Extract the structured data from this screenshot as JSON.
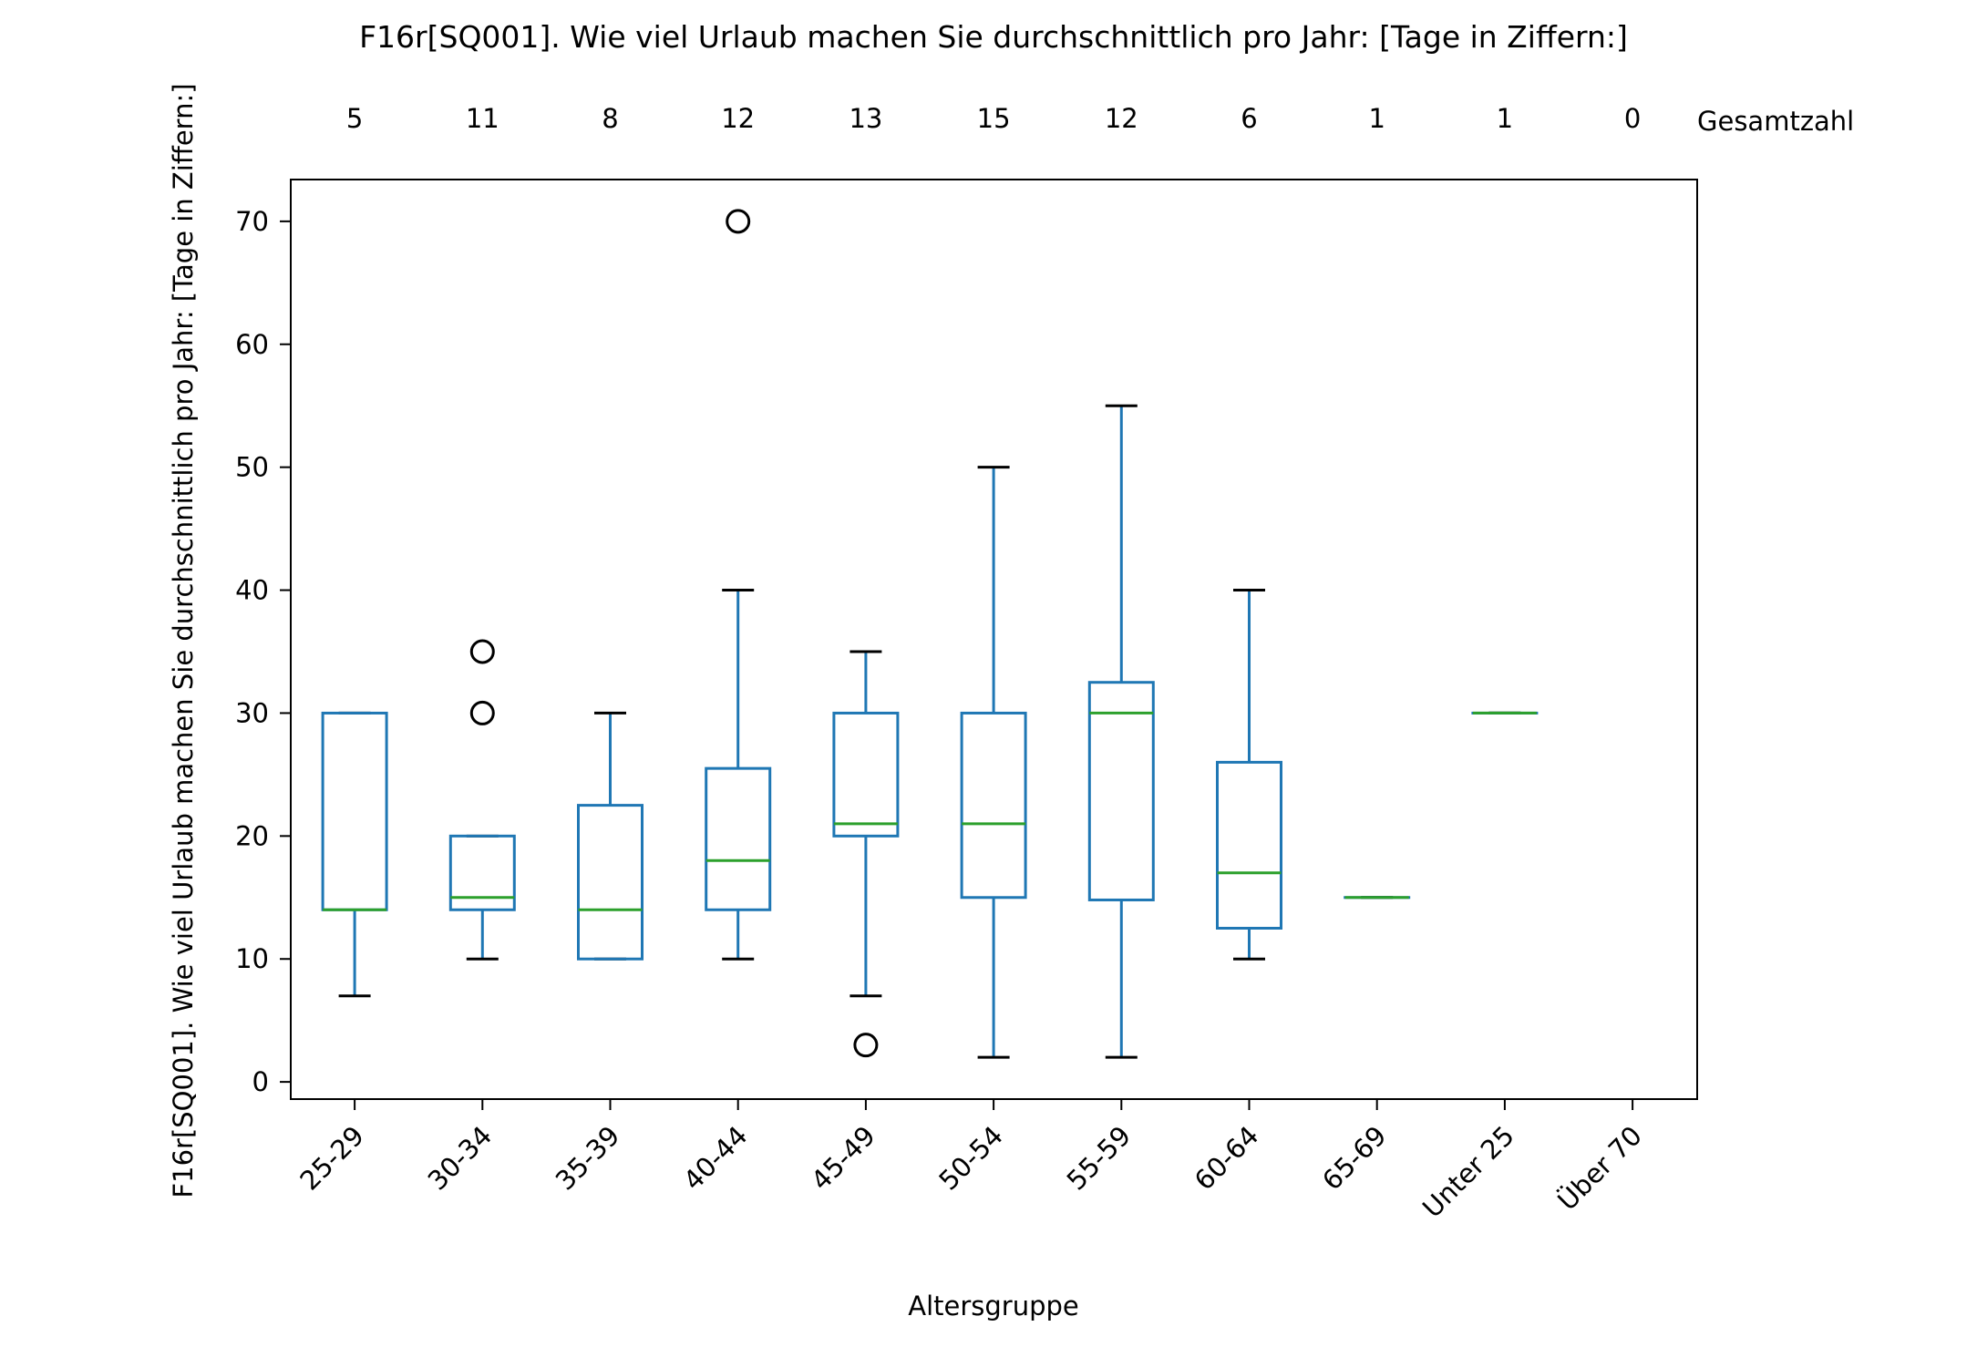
{
  "chart_data": {
    "type": "box",
    "title": "F16r[SQ001]. Wie viel Urlaub machen Sie durchschnittlich pro Jahr: [Tage in Ziffern:]",
    "xlabel": "Altersgruppe",
    "ylabel": "F16r[SQ001]. Wie viel Urlaub machen Sie durchschnittlich pro Jahr: [Tage in Ziffern:]",
    "count_label": "Gesamtzahl",
    "ylim": [
      -1.4,
      73.4
    ],
    "yticks": [
      0,
      10,
      20,
      30,
      40,
      50,
      60,
      70
    ],
    "grid": false,
    "colors": {
      "box": "#1f77b4",
      "median": "#2ca02c",
      "cap": "#000000",
      "flier": "#000000"
    },
    "categories": [
      "25-29",
      "30-34",
      "35-39",
      "40-44",
      "45-49",
      "50-54",
      "55-59",
      "60-64",
      "65-69",
      "Unter 25",
      "Über 70"
    ],
    "counts": [
      5,
      11,
      8,
      12,
      13,
      15,
      12,
      6,
      1,
      1,
      0
    ],
    "boxes": [
      {
        "whislo": 7,
        "q1": 14,
        "med": 14,
        "q3": 30,
        "whishi": 30,
        "fliers": []
      },
      {
        "whislo": 10,
        "q1": 14,
        "med": 15,
        "q3": 20,
        "whishi": 20,
        "fliers": [
          30,
          35
        ]
      },
      {
        "whislo": 10,
        "q1": 10,
        "med": 14,
        "q3": 22.5,
        "whishi": 30,
        "fliers": []
      },
      {
        "whislo": 10,
        "q1": 14,
        "med": 18,
        "q3": 25.5,
        "whishi": 40,
        "fliers": [
          70
        ]
      },
      {
        "whislo": 7,
        "q1": 20,
        "med": 21,
        "q3": 30,
        "whishi": 35,
        "fliers": [
          3
        ]
      },
      {
        "whislo": 2,
        "q1": 15,
        "med": 21,
        "q3": 30,
        "whishi": 50,
        "fliers": []
      },
      {
        "whislo": 2,
        "q1": 14.8,
        "med": 30,
        "q3": 32.5,
        "whishi": 55,
        "fliers": []
      },
      {
        "whislo": 10,
        "q1": 12.5,
        "med": 17,
        "q3": 26,
        "whishi": 40,
        "fliers": []
      },
      {
        "whislo": 15,
        "q1": 15,
        "med": 15,
        "q3": 15,
        "whishi": 15,
        "fliers": []
      },
      {
        "whislo": 30,
        "q1": 30,
        "med": 30,
        "q3": 30,
        "whishi": 30,
        "fliers": []
      },
      null
    ]
  }
}
